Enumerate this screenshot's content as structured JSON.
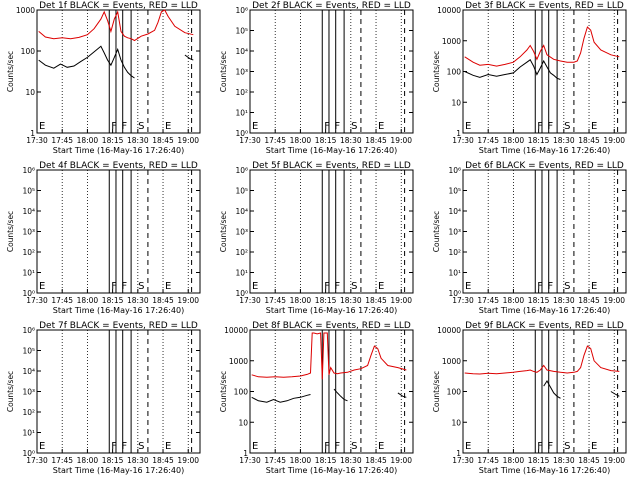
{
  "figure": {
    "xlabel": "Start Time (16-May-16 17:26:40)",
    "ylabel": "Counts/sec",
    "x_ticks": [
      "17:30",
      "17:45",
      "18:00",
      "18:15",
      "18:30",
      "18:45",
      "19:00"
    ],
    "marker_letters": [
      "E",
      "F",
      "F",
      "S",
      "E"
    ]
  },
  "colors": {
    "events": "#000000",
    "lld": "#dd0000",
    "axes": "#000000"
  },
  "chart_data": [
    {
      "type": "line",
      "title": "Det 1f BLACK = Events, RED = LLD",
      "yscale": "log",
      "y_ticks": [
        "1",
        "10",
        "100",
        "1000"
      ],
      "xlim": [
        "17:30",
        "19:07"
      ],
      "ylim": [
        1,
        1000
      ],
      "series": [
        {
          "name": "Events",
          "color": "#000000",
          "x": [
            "17:31",
            "17:35",
            "17:40",
            "17:44",
            "17:48",
            "17:52",
            "17:56",
            "18:00",
            "18:04",
            "18:08",
            "18:10",
            "18:12",
            "18:14",
            "18:16",
            "18:18",
            "18:20",
            "18:22",
            "18:24",
            "18:26",
            "18:28",
            null,
            "18:58",
            "19:01",
            "19:03"
          ],
          "values": [
            60,
            45,
            38,
            48,
            40,
            43,
            55,
            70,
            95,
            130,
            90,
            60,
            45,
            70,
            110,
            60,
            40,
            30,
            25,
            22,
            null,
            80,
            65,
            60
          ]
        },
        {
          "name": "LLD",
          "color": "#dd0000",
          "x": [
            "17:31",
            "17:35",
            "17:40",
            "17:45",
            "17:50",
            "17:55",
            "18:00",
            "18:04",
            "18:08",
            "18:10",
            "18:12",
            "18:14",
            "18:16",
            "18:18",
            "18:20",
            "18:22",
            "18:24",
            "18:26",
            "18:28",
            "18:32",
            "18:36",
            "18:40",
            "18:42",
            "18:44",
            "18:46",
            "18:48",
            "18:52",
            "18:58",
            "19:03"
          ],
          "values": [
            300,
            220,
            200,
            210,
            200,
            215,
            250,
            350,
            600,
            900,
            550,
            300,
            600,
            900,
            300,
            230,
            210,
            200,
            180,
            230,
            260,
            320,
            500,
            900,
            1200,
            700,
            400,
            280,
            250
          ]
        }
      ]
    },
    {
      "type": "line",
      "title": "Det 2f BLACK = Events, RED = LLD",
      "yscale": "log",
      "y_ticks": [
        "10⁰",
        "10¹",
        "10²",
        "10³",
        "10⁴",
        "10⁵",
        "10⁶"
      ],
      "xlim": [
        "17:30",
        "19:07"
      ],
      "ylim": [
        1,
        1000000
      ],
      "series": []
    },
    {
      "type": "line",
      "title": "Det 3f BLACK = Events, RED = LLD",
      "yscale": "log",
      "y_ticks": [
        "1",
        "10",
        "100",
        "1000",
        "10000"
      ],
      "xlim": [
        "17:30",
        "19:07"
      ],
      "ylim": [
        1,
        10000
      ],
      "series": [
        {
          "name": "Events",
          "color": "#000000",
          "x": [
            "17:31",
            "17:36",
            "17:40",
            "17:45",
            "17:50",
            "17:55",
            "18:00",
            "18:04",
            "18:08",
            "18:10",
            "18:12",
            "18:14",
            "18:16",
            "18:18",
            "18:20",
            "18:22",
            "18:24",
            "18:26",
            "18:28"
          ],
          "values": [
            100,
            75,
            65,
            80,
            70,
            80,
            90,
            140,
            200,
            240,
            150,
            80,
            130,
            220,
            140,
            90,
            75,
            60,
            55
          ]
        },
        {
          "name": "LLD",
          "color": "#dd0000",
          "x": [
            "17:31",
            "17:36",
            "17:40",
            "17:45",
            "17:50",
            "17:55",
            "18:00",
            "18:04",
            "18:08",
            "18:10",
            "18:12",
            "18:14",
            "18:16",
            "18:18",
            "18:20",
            "18:24",
            "18:28",
            "18:32",
            "18:36",
            "18:38",
            "18:40",
            "18:42",
            "18:44",
            "18:46",
            "18:48",
            "18:52",
            "18:58",
            "19:03"
          ],
          "values": [
            300,
            200,
            160,
            170,
            150,
            170,
            200,
            300,
            500,
            700,
            450,
            250,
            450,
            700,
            350,
            250,
            220,
            200,
            200,
            220,
            400,
            1200,
            2800,
            2200,
            900,
            500,
            350,
            300
          ]
        }
      ]
    },
    {
      "type": "line",
      "title": "Det 4f BLACK = Events, RED = LLD",
      "yscale": "log",
      "y_ticks": [
        "10⁰",
        "10¹",
        "10²",
        "10³",
        "10⁴",
        "10⁵",
        "10⁶"
      ],
      "xlim": [
        "17:30",
        "19:07"
      ],
      "ylim": [
        1,
        1000000
      ],
      "series": []
    },
    {
      "type": "line",
      "title": "Det 5f BLACK = Events, RED = LLD",
      "yscale": "log",
      "y_ticks": [
        "10⁰",
        "10¹",
        "10²",
        "10³",
        "10⁴",
        "10⁵",
        "10⁶"
      ],
      "xlim": [
        "17:30",
        "19:07"
      ],
      "ylim": [
        1,
        1000000
      ],
      "series": []
    },
    {
      "type": "line",
      "title": "Det 6f BLACK = Events, RED = LLD",
      "yscale": "log",
      "y_ticks": [
        "10⁰",
        "10¹",
        "10²",
        "10³",
        "10⁴",
        "10⁵",
        "10⁶"
      ],
      "xlim": [
        "17:30",
        "19:07"
      ],
      "ylim": [
        1,
        1000000
      ],
      "series": []
    },
    {
      "type": "line",
      "title": "Det 7f BLACK = Events, RED = LLD",
      "yscale": "log",
      "y_ticks": [
        "10⁰",
        "10¹",
        "10²",
        "10³",
        "10⁴",
        "10⁵",
        "10⁶"
      ],
      "xlim": [
        "17:30",
        "19:07"
      ],
      "ylim": [
        1,
        1000000
      ],
      "series": []
    },
    {
      "type": "line",
      "title": "Det 8f BLACK = Events, RED = LLD",
      "yscale": "log",
      "y_ticks": [
        "1",
        "10",
        "100",
        "1000",
        "10000"
      ],
      "xlim": [
        "17:30",
        "19:07"
      ],
      "ylim": [
        1,
        10000
      ],
      "series": [
        {
          "name": "Events",
          "color": "#000000",
          "x": [
            "17:31",
            "17:35",
            "17:40",
            "17:44",
            "17:48",
            "17:52",
            "17:56",
            "18:00",
            "18:04",
            "18:06",
            null,
            "18:20",
            "18:22",
            "18:24",
            "18:26",
            "18:28",
            null,
            "18:58",
            "19:01",
            "19:03"
          ],
          "values": [
            65,
            50,
            45,
            55,
            45,
            50,
            60,
            65,
            75,
            80,
            null,
            120,
            90,
            70,
            55,
            50,
            null,
            90,
            70,
            65
          ]
        },
        {
          "name": "LLD",
          "color": "#dd0000",
          "x": [
            "17:31",
            "17:35",
            "17:40",
            "17:45",
            "17:50",
            "17:55",
            "18:00",
            "18:04",
            "18:06",
            "18:07",
            "18:08",
            "18:10",
            "18:12",
            "18:13",
            "18:14",
            "18:16",
            "18:17",
            "18:18",
            "18:20",
            "18:22",
            "18:24",
            "18:28",
            "18:32",
            "18:36",
            "18:40",
            "18:42",
            "18:44",
            "18:46",
            "18:48",
            "18:52",
            "18:58",
            "19:03"
          ],
          "values": [
            350,
            300,
            290,
            300,
            290,
            300,
            320,
            360,
            400,
            8000,
            8000,
            7500,
            8000,
            250,
            8000,
            8000,
            350,
            600,
            400,
            380,
            400,
            420,
            500,
            550,
            700,
            1500,
            3000,
            2500,
            1200,
            700,
            600,
            500
          ]
        }
      ]
    },
    {
      "type": "line",
      "title": "Det 9f BLACK = Events, RED = LLD",
      "yscale": "log",
      "y_ticks": [
        "1",
        "10",
        "100",
        "1000",
        "10000"
      ],
      "xlim": [
        "17:30",
        "19:07"
      ],
      "ylim": [
        1,
        10000
      ],
      "series": [
        {
          "name": "Events",
          "color": "#000000",
          "x": [
            "18:18",
            "18:20",
            "18:22",
            "18:24",
            "18:26",
            "18:28",
            null,
            "18:58",
            "19:01",
            "19:03"
          ],
          "values": [
            150,
            220,
            140,
            90,
            70,
            60,
            null,
            100,
            80,
            70
          ]
        },
        {
          "name": "LLD",
          "color": "#dd0000",
          "x": [
            "17:31",
            "17:36",
            "17:40",
            "17:45",
            "17:50",
            "17:55",
            "18:00",
            "18:04",
            "18:08",
            "18:10",
            "18:12",
            "18:14",
            "18:16",
            "18:18",
            "18:20",
            "18:24",
            "18:28",
            "18:32",
            "18:36",
            "18:38",
            "18:40",
            "18:42",
            "18:44",
            "18:46",
            "18:48",
            "18:52",
            "18:58",
            "19:03"
          ],
          "values": [
            400,
            380,
            370,
            390,
            380,
            400,
            420,
            450,
            480,
            500,
            450,
            420,
            500,
            700,
            500,
            450,
            420,
            400,
            420,
            450,
            600,
            1500,
            3000,
            2500,
            1000,
            600,
            480,
            450
          ]
        }
      ]
    }
  ]
}
